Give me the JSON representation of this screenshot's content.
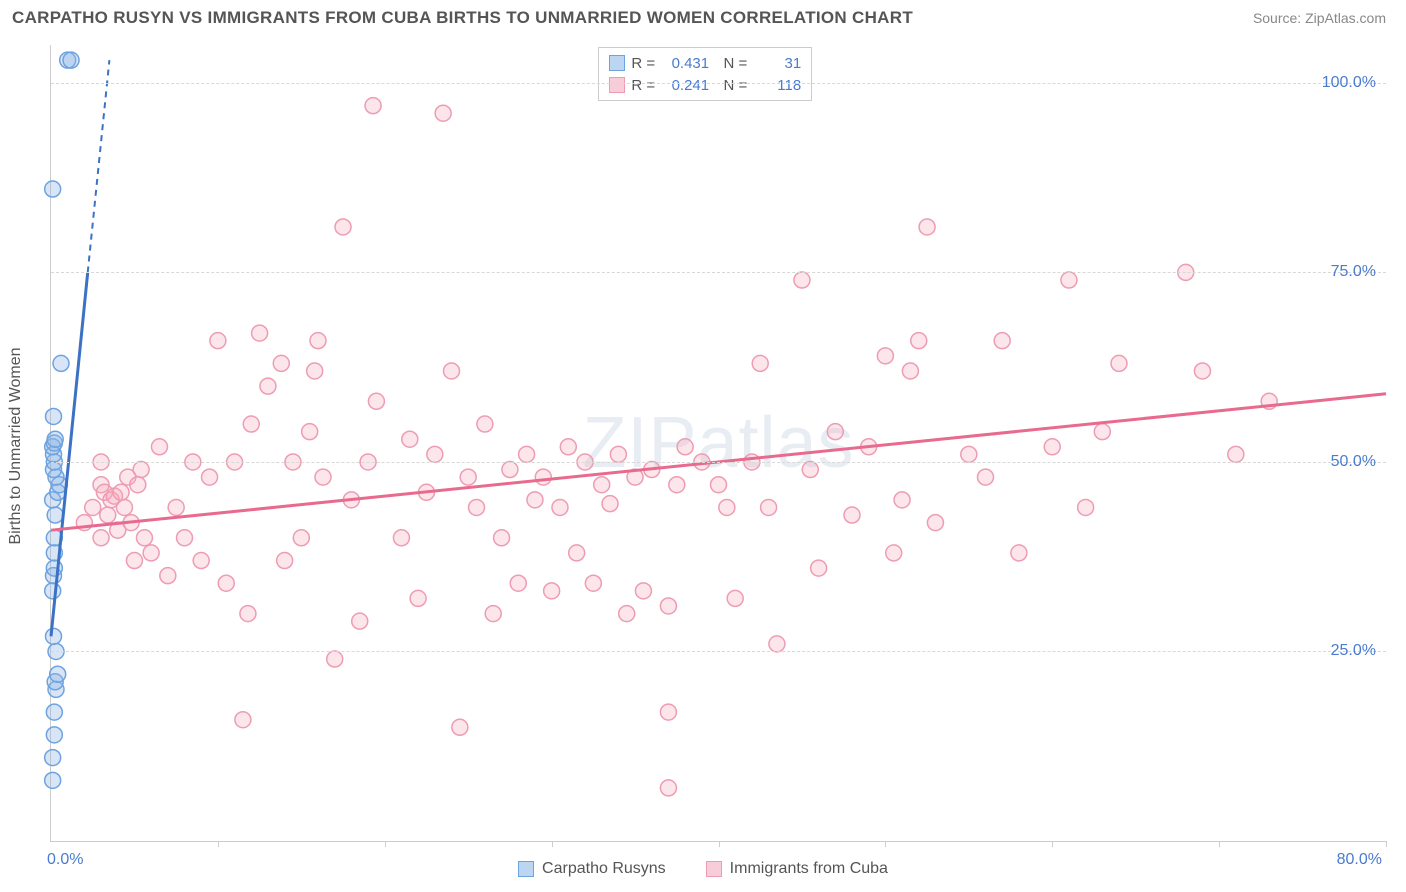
{
  "header": {
    "title": "CARPATHO RUSYN VS IMMIGRANTS FROM CUBA BIRTHS TO UNMARRIED WOMEN CORRELATION CHART",
    "source": "Source: ZipAtlas.com"
  },
  "watermark": "ZIPatlas",
  "chart": {
    "type": "scatter",
    "background_color": "#ffffff",
    "grid_color": "#d8d8d8",
    "axis_color": "#cccccc",
    "tick_label_color": "#4a7bd0",
    "axis_label_color": "#555555",
    "label_fontsize": 16,
    "ylabel": "Births to Unmarried Women",
    "xlim": [
      0,
      80
    ],
    "ylim": [
      0,
      105
    ],
    "xticks_major": [
      10,
      20,
      30,
      40,
      50,
      60,
      70,
      80
    ],
    "yticks": [
      {
        "v": 25,
        "label": "25.0%"
      },
      {
        "v": 50,
        "label": "50.0%"
      },
      {
        "v": 75,
        "label": "75.0%"
      },
      {
        "v": 100,
        "label": "100.0%"
      }
    ],
    "x_origin_label": "0.0%",
    "x_max_label": "80.0%",
    "series": {
      "a": {
        "label": "Carpatho Rusyns",
        "fill": "rgba(140,180,230,0.35)",
        "stroke": "#6da3e0",
        "swatch_bg": "#bcd6f2",
        "swatch_border": "#6da3e0",
        "line_color": "#3b72c4",
        "marker_r": 8,
        "stats": {
          "R": "0.431",
          "N": "31"
        },
        "trend": {
          "x1": 0,
          "y1": 27,
          "x2": 2.2,
          "y2": 75,
          "dash_x1": 2.2,
          "dash_y1": 75,
          "dash_x2": 3.5,
          "dash_y2": 103
        },
        "points": [
          [
            0.1,
            8
          ],
          [
            0.1,
            11
          ],
          [
            0.2,
            14
          ],
          [
            0.2,
            17
          ],
          [
            0.3,
            20
          ],
          [
            0.25,
            21
          ],
          [
            0.4,
            22
          ],
          [
            0.3,
            25
          ],
          [
            0.15,
            27
          ],
          [
            0.1,
            33
          ],
          [
            0.15,
            35
          ],
          [
            0.2,
            36
          ],
          [
            0.2,
            38
          ],
          [
            0.2,
            40
          ],
          [
            0.25,
            43
          ],
          [
            0.1,
            45
          ],
          [
            0.4,
            46
          ],
          [
            0.5,
            47
          ],
          [
            0.3,
            48
          ],
          [
            0.15,
            49
          ],
          [
            0.2,
            50
          ],
          [
            0.15,
            51
          ],
          [
            0.1,
            52
          ],
          [
            0.2,
            52.5
          ],
          [
            0.25,
            53
          ],
          [
            0.15,
            56
          ],
          [
            0.6,
            63
          ],
          [
            0.1,
            86
          ],
          [
            1.0,
            103
          ],
          [
            1.2,
            103
          ]
        ]
      },
      "b": {
        "label": "Immigrants from Cuba",
        "fill": "rgba(245,170,190,0.3)",
        "stroke": "#ee9cb2",
        "swatch_bg": "#f7cdd8",
        "swatch_border": "#ee9cb2",
        "line_color": "#e86a8e",
        "marker_r": 8,
        "stats": {
          "R": "0.241",
          "N": "118"
        },
        "trend": {
          "x1": 0,
          "y1": 41,
          "x2": 80,
          "y2": 59
        },
        "points": [
          [
            2,
            42
          ],
          [
            2.5,
            44
          ],
          [
            3,
            40
          ],
          [
            3,
            47
          ],
          [
            3.2,
            46
          ],
          [
            3.4,
            43
          ],
          [
            3.6,
            45
          ],
          [
            3.8,
            45.5
          ],
          [
            3,
            50
          ],
          [
            4,
            41
          ],
          [
            4.2,
            46
          ],
          [
            4.4,
            44
          ],
          [
            4.6,
            48
          ],
          [
            4.8,
            42
          ],
          [
            5,
            37
          ],
          [
            5.2,
            47
          ],
          [
            5.4,
            49
          ],
          [
            5.6,
            40
          ],
          [
            6,
            38
          ],
          [
            6.5,
            52
          ],
          [
            7,
            35
          ],
          [
            7.5,
            44
          ],
          [
            8,
            40
          ],
          [
            8.5,
            50
          ],
          [
            9,
            37
          ],
          [
            9.5,
            48
          ],
          [
            10,
            66
          ],
          [
            10.5,
            34
          ],
          [
            11,
            50
          ],
          [
            11.5,
            16
          ],
          [
            11.8,
            30
          ],
          [
            12,
            55
          ],
          [
            12.5,
            67
          ],
          [
            13,
            60
          ],
          [
            13.8,
            63
          ],
          [
            14,
            37
          ],
          [
            14.5,
            50
          ],
          [
            15,
            40
          ],
          [
            15.5,
            54
          ],
          [
            15.8,
            62
          ],
          [
            16,
            66
          ],
          [
            16.3,
            48
          ],
          [
            17,
            24
          ],
          [
            17.5,
            81
          ],
          [
            18,
            45
          ],
          [
            18.5,
            29
          ],
          [
            19,
            50
          ],
          [
            19.3,
            97
          ],
          [
            19.5,
            58
          ],
          [
            21,
            40
          ],
          [
            21.5,
            53
          ],
          [
            22,
            32
          ],
          [
            22.5,
            46
          ],
          [
            23,
            51
          ],
          [
            23.5,
            96
          ],
          [
            24,
            62
          ],
          [
            24.5,
            15
          ],
          [
            25,
            48
          ],
          [
            25.5,
            44
          ],
          [
            26,
            55
          ],
          [
            26.5,
            30
          ],
          [
            27,
            40
          ],
          [
            27.5,
            49
          ],
          [
            28,
            34
          ],
          [
            28.5,
            51
          ],
          [
            29,
            45
          ],
          [
            29.5,
            48
          ],
          [
            30,
            33
          ],
          [
            30.5,
            44
          ],
          [
            31,
            52
          ],
          [
            31.5,
            38
          ],
          [
            32,
            50
          ],
          [
            32.5,
            34
          ],
          [
            33,
            47
          ],
          [
            33.5,
            44.5
          ],
          [
            34,
            51
          ],
          [
            34.5,
            30
          ],
          [
            35,
            48
          ],
          [
            35.5,
            33
          ],
          [
            36,
            49
          ],
          [
            37,
            7
          ],
          [
            37,
            17
          ],
          [
            37,
            31
          ],
          [
            37.5,
            47
          ],
          [
            38,
            52
          ],
          [
            39,
            50
          ],
          [
            40,
            47
          ],
          [
            40.5,
            44
          ],
          [
            41,
            32
          ],
          [
            42,
            50
          ],
          [
            42.5,
            63
          ],
          [
            43,
            44
          ],
          [
            43.5,
            26
          ],
          [
            45,
            74
          ],
          [
            45.5,
            49
          ],
          [
            46,
            36
          ],
          [
            47,
            54
          ],
          [
            48,
            43
          ],
          [
            49,
            52
          ],
          [
            50,
            64
          ],
          [
            50.5,
            38
          ],
          [
            51,
            45
          ],
          [
            51.5,
            62
          ],
          [
            52,
            66
          ],
          [
            52.5,
            81
          ],
          [
            53,
            42
          ],
          [
            55,
            51
          ],
          [
            56,
            48
          ],
          [
            57,
            66
          ],
          [
            58,
            38
          ],
          [
            60,
            52
          ],
          [
            61,
            74
          ],
          [
            62,
            44
          ],
          [
            63,
            54
          ],
          [
            64,
            63
          ],
          [
            68,
            75
          ],
          [
            69,
            62
          ],
          [
            71,
            51
          ],
          [
            73,
            58
          ]
        ]
      }
    }
  }
}
